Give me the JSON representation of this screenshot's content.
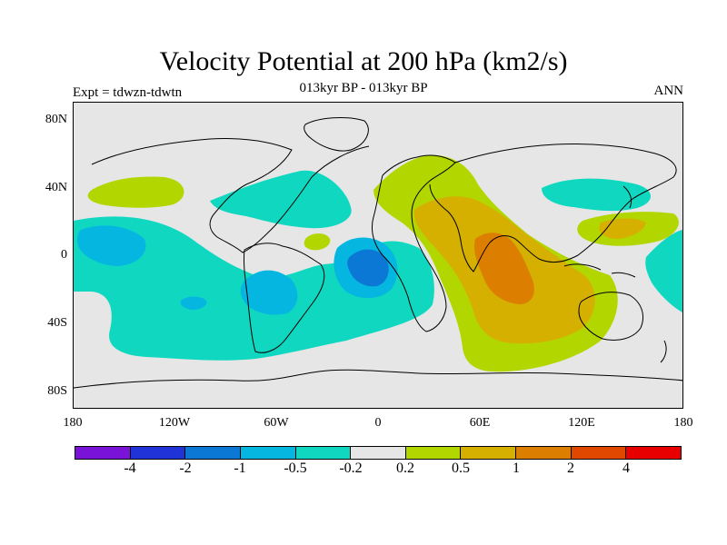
{
  "title": "Velocity Potential at 200 hPa (km2/s)",
  "subtitle": "013kyr BP - 013kyr BP",
  "left_label": "Expt = tdwzn-tdwtn",
  "right_label": "ANN",
  "chart_data": {
    "type": "heatmap",
    "variable": "Velocity Potential at 200 hPa",
    "units": "km2/s",
    "season": "ANN",
    "x_axis": {
      "range": [
        -180,
        180
      ],
      "tick_values": [
        -180,
        -120,
        -60,
        0,
        60,
        120,
        180
      ],
      "tick_labels": [
        "180",
        "120W",
        "60W",
        "0",
        "60E",
        "120E",
        "180"
      ]
    },
    "y_axis": {
      "range": [
        -90,
        90
      ],
      "tick_values": [
        80,
        40,
        0,
        -40,
        -80
      ],
      "tick_labels": [
        "80N",
        "40N",
        "0",
        "40S",
        "80S"
      ]
    },
    "colorbar": {
      "levels": [
        "-4",
        "-2",
        "-1",
        "-0.5",
        "-0.2",
        "0.2",
        "0.5",
        "1",
        "2",
        "4"
      ],
      "colors": [
        "#7a13d8",
        "#1f33d6",
        "#0b78d6",
        "#05b6e0",
        "#10d8c0",
        "#e6e6e6",
        "#b2d600",
        "#d6b000",
        "#dc7e00",
        "#e04800",
        "#e80000"
      ]
    },
    "regions": [
      {
        "name": "Central Pacific negative",
        "level_range": "-0.5 to -0.2"
      },
      {
        "name": "Amazon minimum",
        "level_range": "-1 to -0.5"
      },
      {
        "name": "South Atlantic negative",
        "level_range": "-0.5 to -0.2"
      },
      {
        "name": "North Atlantic negative",
        "level_range": "-0.5 to -0.2"
      },
      {
        "name": "NW Pacific negative",
        "level_range": "-0.5 to -0.2"
      },
      {
        "name": "Africa and Indian Ocean positive",
        "level_range": "0.2 to 0.5"
      },
      {
        "name": "Arabia and Indian Ocean",
        "level_range": "0.5 to 1"
      },
      {
        "name": "Indian Ocean maximum",
        "level_range": "1 to 2"
      },
      {
        "name": "Western Pacific positive",
        "level_range": "0.2 to 0.5"
      }
    ]
  }
}
